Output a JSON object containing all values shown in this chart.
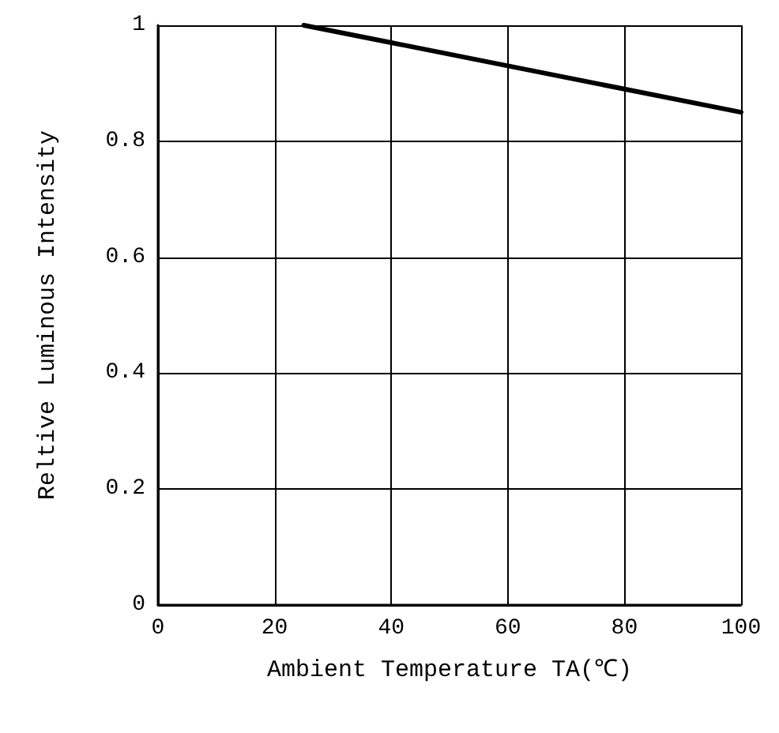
{
  "chart_data": {
    "type": "line",
    "xlabel": "Ambient Temperature TA(℃)",
    "ylabel": "Reltive Luminous Intensity",
    "x": [
      25,
      40,
      60,
      80,
      100
    ],
    "series": [
      {
        "color": "#000000",
        "values": [
          1,
          0.97,
          0.93,
          0.89,
          0.85
        ]
      }
    ],
    "xlim": [
      0,
      100
    ],
    "xticks": [
      0,
      20,
      40,
      60,
      80,
      100
    ],
    "ylim": [
      0,
      1
    ],
    "yticks": [
      0,
      0.2,
      0.4,
      0.6,
      0.8,
      1
    ],
    "grid": true,
    "marker": "none",
    "line_style": "solid"
  }
}
